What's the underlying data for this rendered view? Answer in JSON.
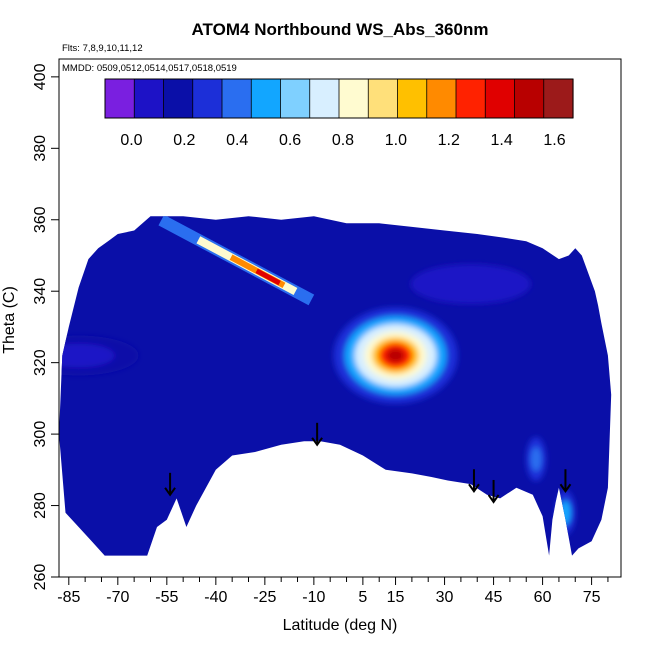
{
  "chart_data": {
    "type": "heatmap",
    "title": "ATOM4 Northbound WS_Abs_360nm",
    "flights_note": "Flts: 7,8,9,10,11,12",
    "dates_note": "MMDD: 0509,0512,0514,0517,0518,0519",
    "xlabel": "Latitude (deg N)",
    "ylabel": "Theta (C)",
    "xlim": [
      -88,
      84
    ],
    "ylim": [
      260,
      405
    ],
    "x_ticks": [
      -85,
      -70,
      -55,
      -40,
      -25,
      -10,
      5,
      15,
      30,
      45,
      60,
      75
    ],
    "x_tick_labels": [
      "-85",
      "-70",
      "-55",
      "-40",
      "-25",
      "-10",
      "5",
      "15",
      "30",
      "45",
      "60",
      "75"
    ],
    "x_minor_ticks": [
      -80,
      -75,
      -65,
      -60,
      -50,
      -45,
      -35,
      -30,
      -20,
      -15,
      -5,
      0,
      10,
      20,
      25,
      35,
      40,
      50,
      55,
      65,
      70,
      80
    ],
    "y_ticks": [
      260,
      280,
      300,
      320,
      340,
      360,
      380,
      400
    ],
    "y_tick_labels": [
      "260",
      "280",
      "300",
      "320",
      "340",
      "360",
      "380",
      "400"
    ],
    "colorbar": {
      "range": [
        -0.1,
        1.67
      ],
      "ticks": [
        0.0,
        0.2,
        0.4,
        0.6,
        0.8,
        1.0,
        1.2,
        1.4,
        1.6
      ],
      "tick_labels": [
        "0.0",
        "0.2",
        "0.4",
        "0.6",
        "0.8",
        "1.0",
        "1.2",
        "1.4",
        "1.6"
      ],
      "colors": [
        "#7a1fe0",
        "#1d12c6",
        "#0a0fa8",
        "#1c2fd8",
        "#2a6ef0",
        "#12a6ff",
        "#7fd0ff",
        "#d8efff",
        "#fffbd0",
        "#ffe07a",
        "#ffc000",
        "#ff8a00",
        "#ff2200",
        "#e00000",
        "#b80000",
        "#9c1a1a"
      ]
    },
    "flight_arrows_lat": [
      -54,
      -9,
      39,
      45,
      67
    ],
    "flight_arrows_theta": [
      283,
      297,
      284,
      281,
      284
    ],
    "data_boundary": {
      "lat": [
        -86,
        -83,
        -78,
        -74,
        -70,
        -67,
        -64,
        -61,
        -58,
        -55,
        -52,
        -49,
        -46,
        -40,
        -35,
        -28,
        -20,
        -13,
        -8,
        -2,
        5,
        12,
        20,
        26,
        31,
        38,
        43,
        47,
        52,
        57,
        60,
        62,
        63,
        64,
        65,
        67,
        69,
        71,
        75,
        78,
        80,
        81,
        80,
        78,
        77,
        76,
        74,
        72,
        70,
        68,
        65,
        60,
        55,
        48,
        40,
        30,
        20,
        10,
        0,
        -10,
        -20,
        -30,
        -40,
        -50,
        -55,
        -60,
        -65,
        -70,
        -73,
        -76,
        -79,
        -82,
        -85,
        -87,
        -88
      ],
      "theta": [
        278,
        275,
        270,
        266,
        266,
        266,
        266,
        266,
        274,
        276,
        282,
        274,
        280,
        290,
        294,
        295,
        297,
        298,
        298,
        297,
        294,
        290,
        289,
        288,
        287,
        286,
        283,
        282,
        285,
        283,
        277,
        266,
        276,
        281,
        285,
        276,
        266,
        268,
        270,
        276,
        285,
        311,
        322,
        331,
        336,
        340,
        345,
        350,
        352,
        350,
        349,
        352,
        354,
        355,
        356,
        357,
        358,
        359,
        359,
        361,
        360,
        361,
        360,
        361,
        361,
        361,
        357,
        356,
        354,
        352,
        349,
        341,
        330,
        322,
        300
      ]
    },
    "background_value": 0.17,
    "features": [
      {
        "kind": "plume_peak",
        "lat": 15,
        "theta": 322,
        "value": 1.5
      },
      {
        "kind": "tilted_layer_peak",
        "lat": -24,
        "theta": 344,
        "value": 1.4
      },
      {
        "kind": "filament",
        "lat": 58,
        "theta": 293,
        "value": 0.45
      },
      {
        "kind": "filament",
        "lat": 67,
        "theta": 278,
        "value": 0.55
      },
      {
        "kind": "low_region",
        "lat": 38,
        "theta": 342,
        "value": 0.02
      },
      {
        "kind": "low_region",
        "lat": -82,
        "theta": 322,
        "value": 0.1
      }
    ]
  }
}
